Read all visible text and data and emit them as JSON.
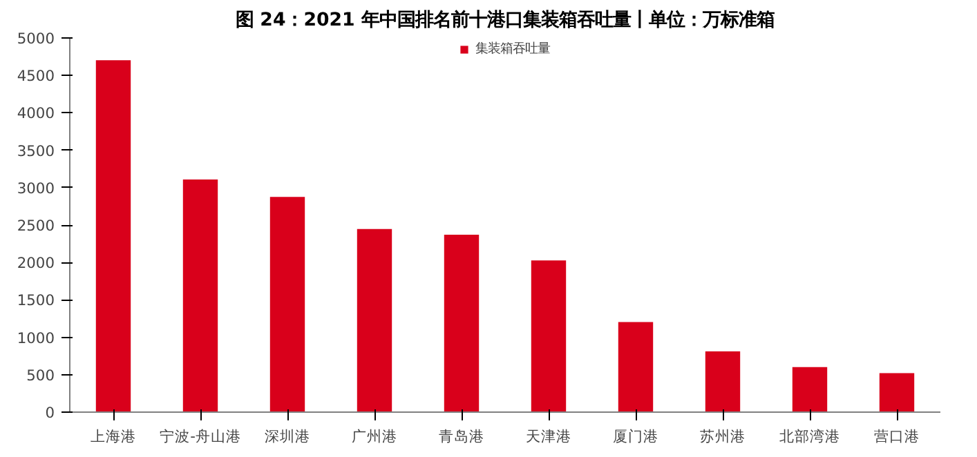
{
  "chart_data": {
    "type": "bar",
    "title": "图 24：2021 年中国排名前十港口集装箱吞吐量丨单位：万标准箱",
    "categories": [
      "上海港",
      "宁波-舟山港",
      "深圳港",
      "广州港",
      "青岛港",
      "天津港",
      "厦门港",
      "苏州港",
      "北部湾港",
      "营口港"
    ],
    "series": [
      {
        "name": "集装箱吞吐量",
        "color": "#d9001b",
        "values": [
          4703,
          3108,
          2877,
          2447,
          2371,
          2027,
          1205,
          811,
          601,
          521
        ]
      }
    ],
    "ylim": [
      0,
      5000
    ],
    "yticks": [
      0,
      500,
      1000,
      1500,
      2000,
      2500,
      3000,
      3500,
      4000,
      4500,
      5000
    ],
    "grid": false,
    "legend": "top"
  }
}
